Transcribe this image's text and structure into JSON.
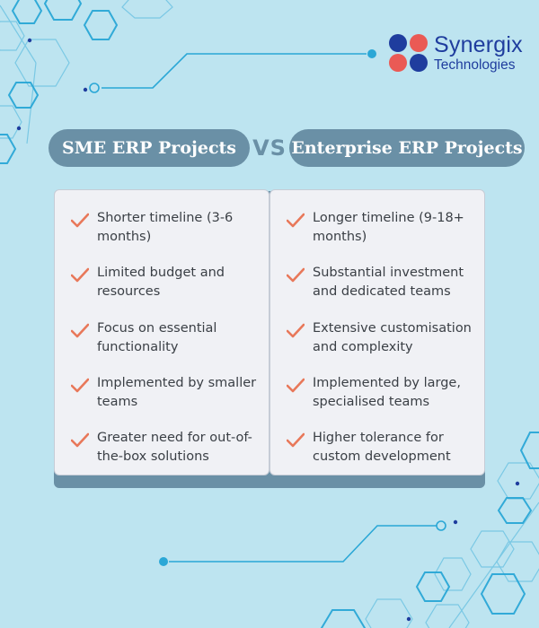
{
  "brand": {
    "name": "Synergix",
    "subtitle": "Technologies",
    "colors": {
      "red": "#ea5a55",
      "blue": "#1f3d9e"
    }
  },
  "comparison": {
    "left_title": "SME ERP Projects",
    "vs_label": "VS",
    "right_title": "Enterprise ERP Projects",
    "left_items": [
      "Shorter timeline (3-6 months)",
      "Limited budget and resources",
      "Focus on essential functionality",
      "Implemented by smaller teams",
      "Greater need for out-of-the-box solutions"
    ],
    "right_items": [
      "Longer timeline (9-18+ months)",
      "Substantial investment and dedicated teams",
      "Extensive customisation and complexity",
      "Implemented by large, specialised teams",
      "Higher tolerance for custom development"
    ]
  },
  "colors": {
    "background": "#bde4f0",
    "pill": "#6a90a6",
    "card": "#f0f1f5",
    "check": "#e8785a",
    "hexagon": "#2aa7d6"
  }
}
